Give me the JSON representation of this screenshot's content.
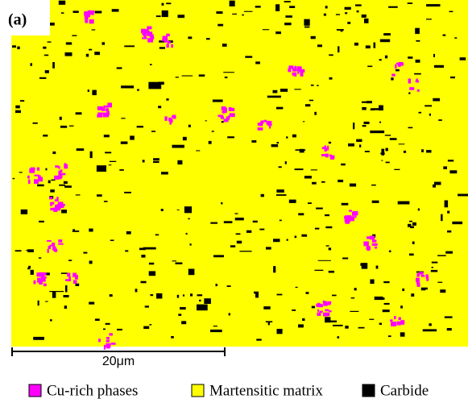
{
  "panel_label": "(a)",
  "scale_bar": {
    "label": "20μm"
  },
  "legend": [
    {
      "label": "Cu-rich phases",
      "color": "#ff00ff"
    },
    {
      "label": "Martensitic matrix",
      "color": "#ffff00"
    },
    {
      "label": "Carbide",
      "color": "#000000"
    }
  ]
}
